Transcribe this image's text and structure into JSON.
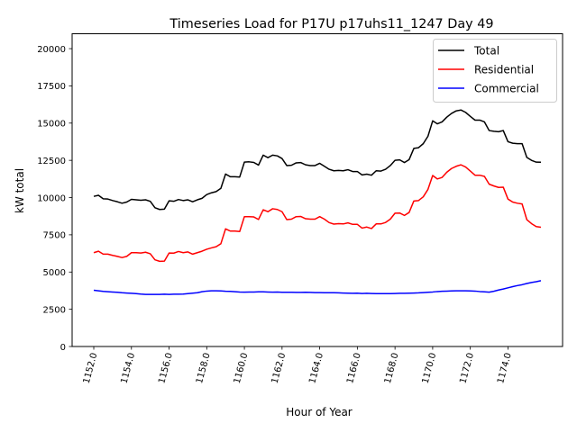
{
  "chart_data": {
    "type": "line",
    "title": "Timeseries Load for P17U p17uhs11_1247  Day 49",
    "xlabel": "Hour of Year",
    "ylabel": "kW total",
    "xlim": [
      1150.85,
      1176.9
    ],
    "ylim": [
      0,
      21000
    ],
    "grid": false,
    "legend_position": "top-right",
    "x_ticks": [
      1152,
      1154,
      1156,
      1158,
      1160,
      1162,
      1164,
      1166,
      1168,
      1170,
      1172,
      1174
    ],
    "x_tick_labels": [
      "1152.0",
      "1154.0",
      "1156.0",
      "1158.0",
      "1160.0",
      "1162.0",
      "1164.0",
      "1166.0",
      "1168.0",
      "1170.0",
      "1172.0",
      "1174.0"
    ],
    "y_ticks": [
      0,
      2500,
      5000,
      7500,
      10000,
      12500,
      15000,
      17500,
      20000
    ],
    "y_tick_labels": [
      "0",
      "2500",
      "5000",
      "7500",
      "10000",
      "12500",
      "15000",
      "17500",
      "20000"
    ],
    "x_start": 1152,
    "x_step": 0.25,
    "series": [
      {
        "name": "Total",
        "color": "#000000",
        "values": [
          10080,
          10150,
          9920,
          9900,
          9800,
          9720,
          9620,
          9700,
          9880,
          9850,
          9820,
          9850,
          9750,
          9320,
          9200,
          9220,
          9780,
          9750,
          9870,
          9800,
          9850,
          9720,
          9850,
          9950,
          10200,
          10320,
          10400,
          10620,
          11580,
          11400,
          11400,
          11380,
          12380,
          12400,
          12360,
          12180,
          12850,
          12680,
          12850,
          12800,
          12620,
          12150,
          12170,
          12330,
          12350,
          12200,
          12150,
          12150,
          12300,
          12100,
          11900,
          11800,
          11820,
          11800,
          11870,
          11750,
          11750,
          11520,
          11570,
          11500,
          11800,
          11780,
          11900,
          12150,
          12500,
          12530,
          12350,
          12550,
          13300,
          13350,
          13620,
          14120,
          15150,
          14950,
          15080,
          15400,
          15650,
          15820,
          15880,
          15720,
          15450,
          15200,
          15200,
          15080,
          14500,
          14450,
          14420,
          14500,
          13750,
          13650,
          13620,
          13620,
          12700,
          12500,
          12380,
          12370
        ]
      },
      {
        "name": "Residential",
        "color": "#ff0000",
        "values": [
          6300,
          6400,
          6200,
          6200,
          6120,
          6050,
          5970,
          6050,
          6300,
          6300,
          6280,
          6330,
          6230,
          5820,
          5720,
          5730,
          6280,
          6270,
          6380,
          6300,
          6350,
          6200,
          6300,
          6400,
          6530,
          6620,
          6700,
          6900,
          7900,
          7750,
          7750,
          7720,
          8720,
          8720,
          8700,
          8530,
          9180,
          9050,
          9250,
          9200,
          9050,
          8520,
          8550,
          8720,
          8730,
          8580,
          8550,
          8550,
          8720,
          8550,
          8320,
          8220,
          8250,
          8230,
          8300,
          8200,
          8200,
          7950,
          8020,
          7920,
          8230,
          8230,
          8330,
          8550,
          8950,
          8960,
          8800,
          9000,
          9770,
          9800,
          10050,
          10550,
          11480,
          11250,
          11350,
          11700,
          11950,
          12100,
          12200,
          12050,
          11780,
          11500,
          11500,
          11420,
          10900,
          10780,
          10680,
          10700,
          9900,
          9700,
          9620,
          9570,
          8520,
          8250,
          8050,
          8010
        ]
      },
      {
        "name": "Commercial",
        "color": "#0000ff",
        "values": [
          3780,
          3740,
          3700,
          3680,
          3660,
          3640,
          3610,
          3590,
          3570,
          3550,
          3520,
          3500,
          3500,
          3500,
          3500,
          3510,
          3500,
          3510,
          3510,
          3520,
          3550,
          3580,
          3610,
          3680,
          3720,
          3740,
          3740,
          3730,
          3710,
          3700,
          3680,
          3660,
          3650,
          3660,
          3660,
          3670,
          3670,
          3660,
          3650,
          3660,
          3640,
          3640,
          3640,
          3630,
          3630,
          3640,
          3630,
          3620,
          3620,
          3610,
          3610,
          3610,
          3600,
          3590,
          3580,
          3570,
          3580,
          3560,
          3570,
          3560,
          3550,
          3550,
          3550,
          3550,
          3560,
          3570,
          3570,
          3580,
          3590,
          3600,
          3620,
          3640,
          3660,
          3690,
          3710,
          3720,
          3730,
          3740,
          3740,
          3740,
          3730,
          3720,
          3690,
          3670,
          3650,
          3710,
          3790,
          3860,
          3940,
          4020,
          4090,
          4150,
          4230,
          4300,
          4350,
          4420
        ]
      }
    ]
  }
}
